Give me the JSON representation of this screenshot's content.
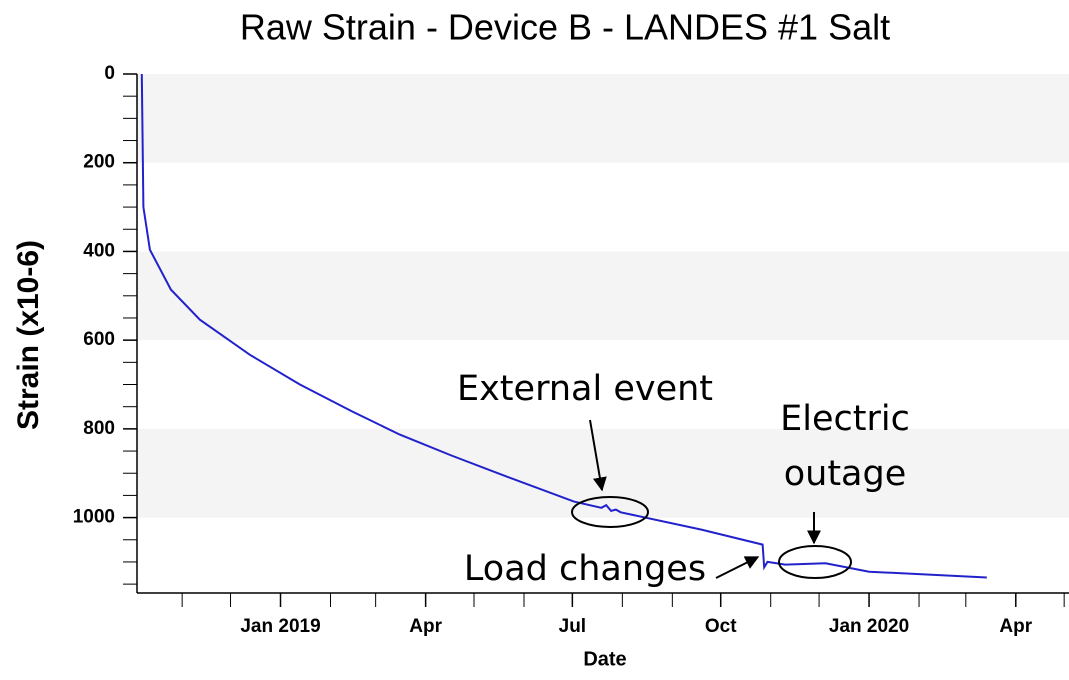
{
  "chart_data": {
    "type": "line",
    "title": "Raw Strain - Device B - LANDES #1 Salt",
    "x_label": "Date",
    "y_label": "Strain (x10-6)",
    "y_inverted": true,
    "alternating_bands": true,
    "ylim": [
      0,
      1170
    ],
    "yticks": [
      0,
      200,
      400,
      600,
      800,
      1000
    ],
    "yminorticks": [
      50,
      100,
      150,
      250,
      300,
      350,
      450,
      500,
      550,
      650,
      700,
      750,
      850,
      900,
      950,
      1050,
      1100,
      1150
    ],
    "xlim": [
      "2018-10-04",
      "2020-05-04"
    ],
    "xticks": [
      {
        "value": "2019-01-01",
        "label": "Jan 2019"
      },
      {
        "value": "2019-04-01",
        "label": "Apr"
      },
      {
        "value": "2019-07-01",
        "label": "Jul"
      },
      {
        "value": "2019-10-01",
        "label": "Oct"
      },
      {
        "value": "2020-01-01",
        "label": "Jan 2020"
      },
      {
        "value": "2020-04-01",
        "label": "Apr"
      }
    ],
    "xminorticks": [
      "2018-11-01",
      "2018-12-01",
      "2019-02-01",
      "2019-03-01",
      "2019-05-01",
      "2019-06-01",
      "2019-08-01",
      "2019-09-01",
      "2019-11-01",
      "2019-12-01",
      "2020-02-01",
      "2020-03-01",
      "2020-05-01"
    ],
    "series": [
      {
        "name": "Strain",
        "color": "#2222cc",
        "x": [
          "2018-10-07",
          "2018-10-08",
          "2018-10-12",
          "2018-10-25",
          "2018-11-12",
          "2018-12-13",
          "2019-01-13",
          "2019-02-14",
          "2019-03-16",
          "2019-04-17",
          "2019-05-18",
          "2019-07-02",
          "2019-07-19",
          "2019-07-22",
          "2019-07-25",
          "2019-07-28",
          "2019-07-31",
          "2019-09-19",
          "2019-10-27",
          "2019-10-28",
          "2019-10-30",
          "2019-11-10",
          "2019-12-05",
          "2019-12-15",
          "2020-01-01",
          "2020-03-14"
        ],
        "values": [
          0,
          300,
          396,
          486,
          554,
          633,
          700,
          760,
          813,
          860,
          903,
          964,
          978,
          972,
          985,
          982,
          988,
          1027,
          1061,
          1112,
          1100,
          1106,
          1103,
          1110,
          1122,
          1135
        ]
      }
    ],
    "annotations": [
      {
        "lines": [
          "External event"
        ]
      },
      {
        "lines": [
          "Electric",
          "outage"
        ]
      },
      {
        "lines": [
          "Load changes"
        ]
      }
    ]
  }
}
